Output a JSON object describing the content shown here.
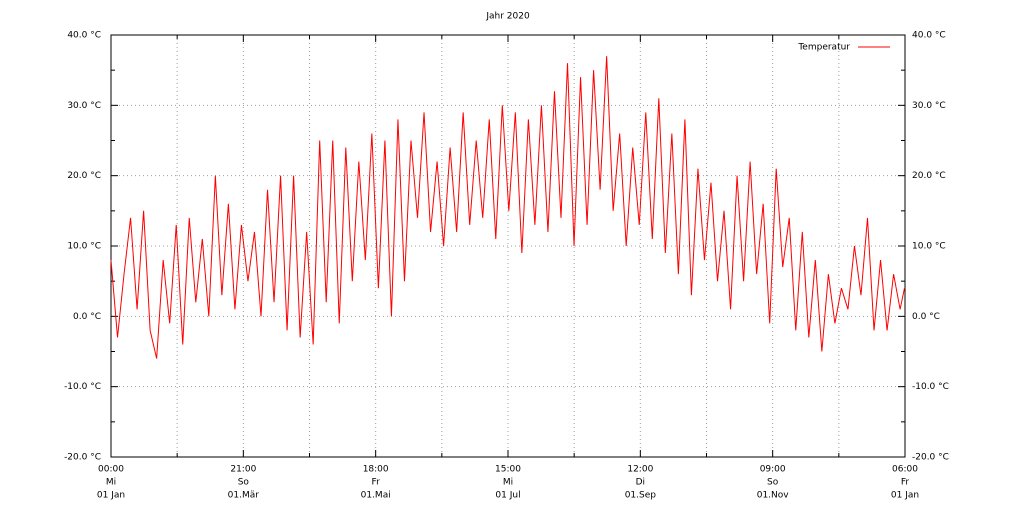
{
  "chart_data": {
    "type": "line",
    "title": "Jahr 2020",
    "x": [
      0,
      3,
      6,
      9,
      12,
      15,
      18,
      21,
      24,
      27,
      30,
      33,
      36,
      39,
      42,
      45,
      48,
      51,
      54,
      57,
      60,
      63,
      66,
      69,
      72,
      75,
      78,
      81,
      84,
      87,
      90,
      93,
      96,
      99,
      102,
      105,
      108,
      111,
      114,
      117,
      120,
      123,
      126,
      129,
      132,
      135,
      138,
      141,
      144,
      147,
      150,
      153,
      156,
      159,
      162,
      165,
      168,
      171,
      174,
      177,
      180,
      183,
      186,
      189,
      192,
      195,
      198,
      201,
      204,
      207,
      210,
      213,
      216,
      219,
      222,
      225,
      228,
      231,
      234,
      237,
      240,
      243,
      246,
      249,
      252,
      255,
      258,
      261,
      264,
      267,
      270,
      273,
      276,
      279,
      282,
      285,
      288,
      291,
      294,
      297,
      300,
      303,
      306,
      309,
      312,
      315,
      318,
      321,
      324,
      327,
      330,
      333,
      336,
      339,
      342,
      345,
      348,
      351,
      354,
      357,
      360,
      363,
      365
    ],
    "series": [
      {
        "name": "Temperatur",
        "color": "#ff0000",
        "values": [
          8,
          -3,
          6,
          14,
          1,
          15,
          -2,
          -6,
          8,
          -1,
          13,
          -4,
          14,
          2,
          11,
          0,
          20,
          3,
          16,
          1,
          13,
          5,
          12,
          0,
          18,
          2,
          20,
          -2,
          20,
          -3,
          12,
          -4,
          25,
          2,
          25,
          -1,
          24,
          5,
          22,
          8,
          26,
          4,
          25,
          0,
          28,
          5,
          25,
          14,
          29,
          12,
          22,
          10,
          24,
          12,
          29,
          13,
          25,
          14,
          28,
          11,
          30,
          15,
          29,
          9,
          28,
          13,
          30,
          12,
          32,
          14,
          36,
          10,
          34,
          13,
          35,
          18,
          37,
          15,
          26,
          10,
          24,
          13,
          29,
          11,
          31,
          9,
          26,
          6,
          28,
          3,
          21,
          8,
          19,
          5,
          15,
          1,
          20,
          5,
          22,
          6,
          16,
          -1,
          21,
          7,
          14,
          -2,
          12,
          -3,
          8,
          -5,
          6,
          -1,
          4,
          1,
          10,
          3,
          14,
          -2,
          8,
          -2,
          6,
          1,
          4
        ]
      }
    ],
    "xlim": [
      0,
      365.25
    ],
    "xticks": [
      {
        "value": 0,
        "label": [
          "00:00",
          "Mi",
          "01 Jan"
        ]
      },
      {
        "value": 60.875,
        "label": [
          "21:00",
          "So",
          "01.Mär"
        ]
      },
      {
        "value": 121.75,
        "label": [
          "18:00",
          "Fr",
          "01.Mai"
        ]
      },
      {
        "value": 182.625,
        "label": [
          "15:00",
          "Mi",
          "01 Jul"
        ]
      },
      {
        "value": 243.5,
        "label": [
          "12:00",
          "Di",
          "01.Sep"
        ]
      },
      {
        "value": 304.375,
        "label": [
          "09:00",
          "So",
          "01.Nov"
        ]
      },
      {
        "value": 365.25,
        "label": [
          "06:00",
          "Fr",
          "01 Jan"
        ]
      }
    ],
    "ylim": [
      -20,
      40
    ],
    "yticks": [
      {
        "value": -20,
        "label": "-20.0 °C"
      },
      {
        "value": -10,
        "label": "-10.0 °C"
      },
      {
        "value": 0,
        "label": "0.0 °C"
      },
      {
        "value": 10,
        "label": "10.0 °C"
      },
      {
        "value": 20,
        "label": "20.0 °C"
      },
      {
        "value": 30,
        "label": "30.0 °C"
      },
      {
        "value": 40,
        "label": "40.0 °C"
      }
    ],
    "grid": true,
    "legend": "top-right"
  }
}
